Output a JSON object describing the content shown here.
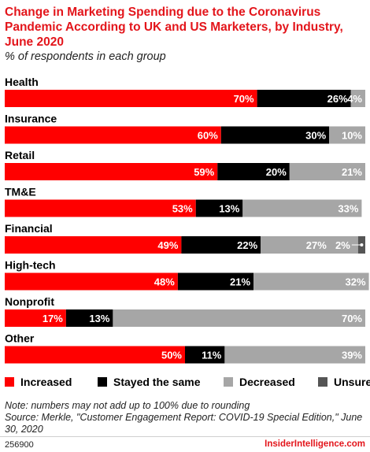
{
  "header": {
    "title": "Change in Marketing Spending due to the Coronavirus Pandemic According to UK and US Marketers, by Industry, June 2020",
    "subtitle": "% of respondents in each group"
  },
  "chart_data": {
    "type": "bar",
    "orientation": "horizontal",
    "stacked": true,
    "xlim": [
      0,
      100
    ],
    "categories": [
      "Health",
      "Insurance",
      "Retail",
      "TM&E",
      "Financial",
      "High-tech",
      "Nonprofit",
      "Other"
    ],
    "series": [
      {
        "name": "Increased",
        "color": "#ff0000",
        "values": [
          70,
          60,
          59,
          53,
          49,
          48,
          17,
          50
        ]
      },
      {
        "name": "Stayed the same",
        "color": "#000000",
        "values": [
          26,
          30,
          20,
          13,
          22,
          21,
          13,
          11
        ]
      },
      {
        "name": "Decreased",
        "color": "#a6a6a6",
        "values": [
          4,
          10,
          21,
          33,
          27,
          32,
          70,
          39
        ]
      },
      {
        "name": "Unsure",
        "color": "#555555",
        "values": [
          0,
          0,
          0,
          0,
          2,
          0,
          0,
          0
        ]
      }
    ],
    "legend_position": "bottom",
    "grid": false
  },
  "legend": [
    {
      "label": "Increased",
      "color": "#ff0000"
    },
    {
      "label": "Stayed the same",
      "color": "#000000"
    },
    {
      "label": "Decreased",
      "color": "#a6a6a6"
    },
    {
      "label": "Unsure",
      "color": "#555555"
    }
  ],
  "notes": {
    "note": "Note: numbers may not add up to 100% due to rounding",
    "source": "Source: Merkle, \"Customer Engagement Report: COVID-19 Special Edition,\" June 30, 2020"
  },
  "footer": {
    "id": "256900",
    "brand": "InsiderIntelligence.com"
  }
}
